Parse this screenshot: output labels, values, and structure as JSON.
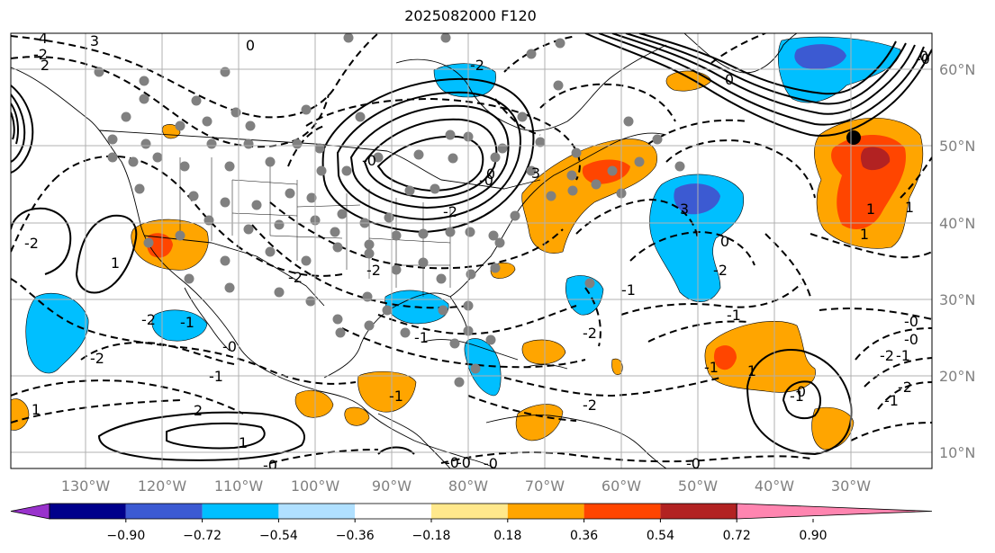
{
  "title": "2025082000 F120",
  "map": {
    "lon_labels": [
      "130°W",
      "120°W",
      "110°W",
      "100°W",
      "90°W",
      "80°W",
      "70°W",
      "60°W",
      "50°W",
      "40°W",
      "30°W"
    ],
    "lat_labels": [
      "60°N",
      "50°N",
      "40°N",
      "30°N",
      "20°N",
      "10°N"
    ],
    "contour_labels": [
      "4",
      "3",
      "2",
      "-2",
      "-2",
      "1",
      "0",
      "0",
      "3",
      "3",
      "-2",
      "-2",
      "-2",
      "-2",
      "-1",
      "-1",
      "-1",
      "-2",
      "-1",
      "-1",
      "-1",
      "0",
      "1",
      "0",
      "1",
      "1",
      "-0",
      "-0",
      "-0",
      "-0",
      "-0",
      "-0",
      "-1",
      "-2",
      "-2",
      "-1",
      "-2",
      "0",
      "-0",
      "1",
      "-2",
      "-1",
      "-2",
      "-0",
      "2",
      "-0",
      "-2",
      "-1",
      "-0",
      "-0",
      "0",
      "1",
      "1"
    ],
    "colors": {
      "grid": "#b0b0b0",
      "blue_light": "#00bfff",
      "blue_mid": "#3c5ad2",
      "orange": "#ffa500",
      "red_orange": "#ff4500",
      "dark_red": "#b22222",
      "station_dot": "#808080"
    }
  },
  "colorbar": {
    "colors": [
      "#9932cc",
      "#00008b",
      "#3c5ad2",
      "#00bfff",
      "#b0e0ff",
      "#ffffff",
      "#ffe88c",
      "#ffa500",
      "#ff4500",
      "#b22222",
      "#ff85b0"
    ],
    "tick_labels": [
      "−0.90",
      "−0.72",
      "−0.54",
      "−0.36",
      "−0.18",
      "0.18",
      "0.36",
      "0.54",
      "0.72",
      "0.90"
    ]
  }
}
